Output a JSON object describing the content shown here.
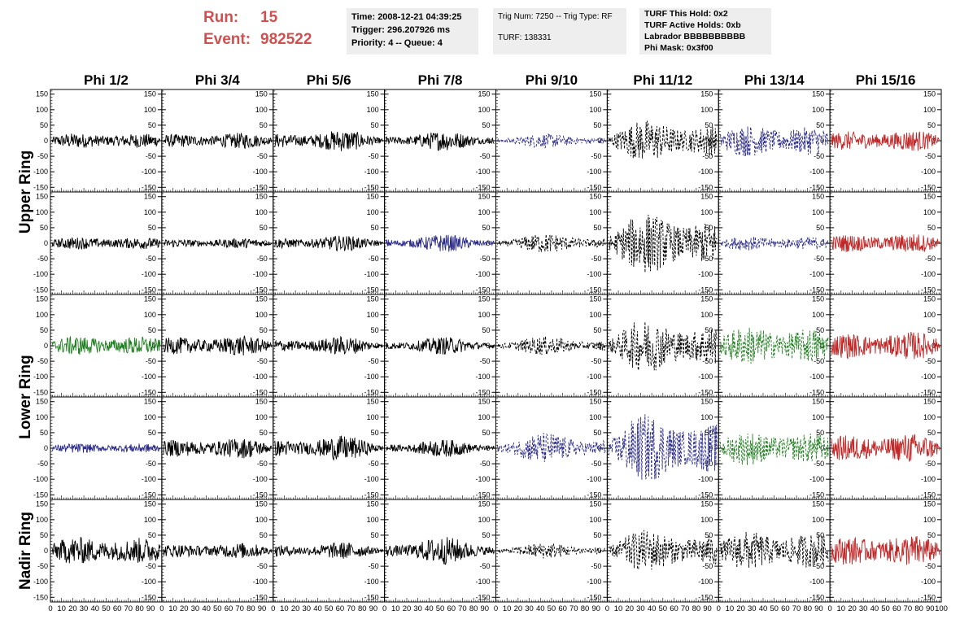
{
  "header": {
    "run_label": "Run:",
    "run_value": "15",
    "event_label": "Event:",
    "event_value": "982522",
    "time_text": "Time: 2008-12-21 04:39:25",
    "trigger_text": "Trigger: 296.207926 ms",
    "priority_text": "Priority: 4 -- Queue: 4",
    "trig_num_text": "Trig Num: 7250 -- Trig Type: RF",
    "turf_text": "TURF: 138331",
    "turf_hold_text": "TURF This Hold: 0x2",
    "turf_active_text": "TURF Active Holds: 0xb",
    "labrador_text": "Labrador BBBBBBBBBB",
    "phi_mask_text": "Phi Mask: 0x3f00"
  },
  "chart_data": {
    "type": "line",
    "columns": [
      "Phi 1/2",
      "Phi 3/4",
      "Phi 5/6",
      "Phi 7/8",
      "Phi 9/10",
      "Phi 11/12",
      "Phi 13/14",
      "Phi 15/16"
    ],
    "row_groups": [
      {
        "label": "Upper Ring",
        "rows": [
          0,
          1
        ]
      },
      {
        "label": "Lower Ring",
        "rows": [
          2,
          3
        ]
      },
      {
        "label": "Nadir Ring",
        "rows": [
          4
        ]
      }
    ],
    "xlim": [
      0,
      100
    ],
    "ylim": [
      -165,
      165
    ],
    "y_ticks": [
      -150,
      -100,
      -50,
      0,
      50,
      100,
      150
    ],
    "x_tick_labels": [
      "0",
      "10",
      "20",
      "30",
      "40",
      "50",
      "60",
      "70",
      "80",
      "90",
      "100"
    ],
    "colors": {
      "black": "#000000",
      "blue": "#2a2a8a",
      "green": "#208020",
      "red": "#c02828"
    },
    "panels": [
      {
        "row": 0,
        "col": 0,
        "color": "black",
        "style": "solid",
        "amp": 22
      },
      {
        "row": 0,
        "col": 1,
        "color": "black",
        "style": "solid",
        "amp": 22
      },
      {
        "row": 0,
        "col": 2,
        "color": "black",
        "style": "solid",
        "amp": 28
      },
      {
        "row": 0,
        "col": 3,
        "color": "black",
        "style": "solid",
        "amp": 25
      },
      {
        "row": 0,
        "col": 4,
        "color": "blue",
        "style": "dashed",
        "amp": 18
      },
      {
        "row": 0,
        "col": 5,
        "color": "black",
        "style": "dashed",
        "amp": 55
      },
      {
        "row": 0,
        "col": 6,
        "color": "blue",
        "style": "dashed",
        "amp": 45
      },
      {
        "row": 0,
        "col": 7,
        "color": "red",
        "style": "solid",
        "amp": 30
      },
      {
        "row": 1,
        "col": 0,
        "color": "black",
        "style": "solid",
        "amp": 18
      },
      {
        "row": 1,
        "col": 1,
        "color": "black",
        "style": "solid",
        "amp": 14
      },
      {
        "row": 1,
        "col": 2,
        "color": "black",
        "style": "solid",
        "amp": 20
      },
      {
        "row": 1,
        "col": 3,
        "color": "blue",
        "style": "solid",
        "amp": 22
      },
      {
        "row": 1,
        "col": 4,
        "color": "black",
        "style": "dashed",
        "amp": 25
      },
      {
        "row": 1,
        "col": 5,
        "color": "black",
        "style": "dashed",
        "amp": 80
      },
      {
        "row": 1,
        "col": 6,
        "color": "blue",
        "style": "dashed",
        "amp": 20
      },
      {
        "row": 1,
        "col": 7,
        "color": "red",
        "style": "solid",
        "amp": 28
      },
      {
        "row": 2,
        "col": 0,
        "color": "green",
        "style": "solid",
        "amp": 28
      },
      {
        "row": 2,
        "col": 1,
        "color": "black",
        "style": "solid",
        "amp": 28
      },
      {
        "row": 2,
        "col": 2,
        "color": "black",
        "style": "solid",
        "amp": 24
      },
      {
        "row": 2,
        "col": 3,
        "color": "black",
        "style": "solid",
        "amp": 22
      },
      {
        "row": 2,
        "col": 4,
        "color": "black",
        "style": "dashed",
        "amp": 24
      },
      {
        "row": 2,
        "col": 5,
        "color": "black",
        "style": "dashed",
        "amp": 70
      },
      {
        "row": 2,
        "col": 6,
        "color": "green",
        "style": "dashed",
        "amp": 55
      },
      {
        "row": 2,
        "col": 7,
        "color": "red",
        "style": "solid",
        "amp": 40
      },
      {
        "row": 3,
        "col": 0,
        "color": "blue",
        "style": "solid",
        "amp": 14
      },
      {
        "row": 3,
        "col": 1,
        "color": "black",
        "style": "solid",
        "amp": 28
      },
      {
        "row": 3,
        "col": 2,
        "color": "black",
        "style": "solid",
        "amp": 32
      },
      {
        "row": 3,
        "col": 3,
        "color": "black",
        "style": "solid",
        "amp": 22
      },
      {
        "row": 3,
        "col": 4,
        "color": "blue",
        "style": "dashed",
        "amp": 40
      },
      {
        "row": 3,
        "col": 5,
        "color": "blue",
        "style": "dashed",
        "amp": 90
      },
      {
        "row": 3,
        "col": 6,
        "color": "green",
        "style": "dashed",
        "amp": 48
      },
      {
        "row": 3,
        "col": 7,
        "color": "red",
        "style": "solid",
        "amp": 42
      },
      {
        "row": 4,
        "col": 0,
        "color": "black",
        "style": "solid",
        "amp": 40
      },
      {
        "row": 4,
        "col": 1,
        "color": "black",
        "style": "solid",
        "amp": 22
      },
      {
        "row": 4,
        "col": 2,
        "color": "black",
        "style": "solid",
        "amp": 22
      },
      {
        "row": 4,
        "col": 3,
        "color": "black",
        "style": "solid",
        "amp": 35
      },
      {
        "row": 4,
        "col": 4,
        "color": "black",
        "style": "dashed",
        "amp": 20
      },
      {
        "row": 4,
        "col": 5,
        "color": "black",
        "style": "dashed",
        "amp": 55
      },
      {
        "row": 4,
        "col": 6,
        "color": "black",
        "style": "dashed",
        "amp": 55
      },
      {
        "row": 4,
        "col": 7,
        "color": "red",
        "style": "solid",
        "amp": 45
      }
    ]
  }
}
